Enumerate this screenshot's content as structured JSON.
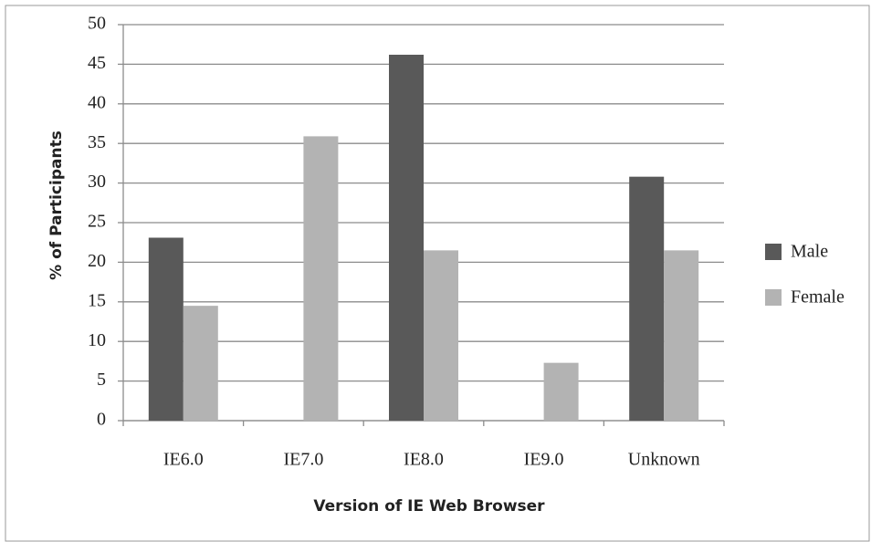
{
  "chart_data": {
    "type": "bar",
    "x_label": "Version of IE Web Browser",
    "y_label": "% of Participants",
    "categories": [
      "IE6.0",
      "IE7.0",
      "IE8.0",
      "IE9.0",
      "Unknown"
    ],
    "series": [
      {
        "name": "Male",
        "color": "#595959",
        "values": [
          23.1,
          0,
          46.2,
          0,
          30.8
        ]
      },
      {
        "name": "Female",
        "color": "#b3b3b3",
        "values": [
          14.5,
          35.9,
          21.5,
          7.3,
          21.5
        ]
      }
    ],
    "ylim": [
      0,
      50
    ],
    "yticks": [
      0,
      5,
      10,
      15,
      20,
      25,
      30,
      35,
      40,
      45,
      50
    ],
    "grid": true,
    "legend": "right"
  }
}
